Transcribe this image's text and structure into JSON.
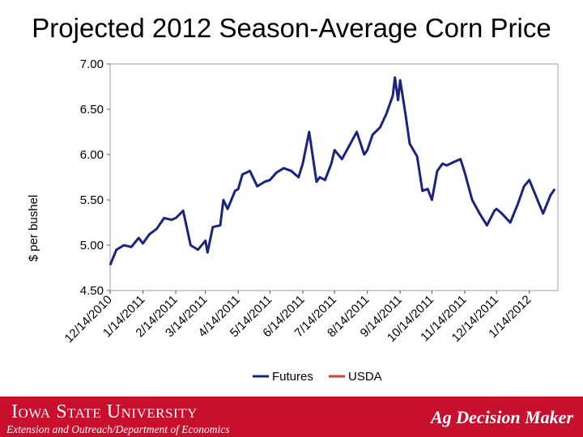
{
  "title": "Projected 2012 Season-Average Corn Price",
  "footer": {
    "university": "Iowa State University",
    "department": "Extension and Outreach/Department of Economics",
    "brand": "Ag Decision Maker"
  },
  "colors": {
    "futures": "#1a237e",
    "usda": "#e53935",
    "footer_bg": "#c8102e"
  },
  "chart_data": {
    "type": "line",
    "title": "",
    "xlabel": "",
    "ylabel": "$ per bushel",
    "ylim": [
      4.5,
      7.0
    ],
    "yticks": [
      "7.00",
      "6.50",
      "6.00",
      "5.50",
      "5.00",
      "4.50"
    ],
    "xtick_labels": [
      "12/14/2010",
      "1/14/2011",
      "2/14/2011",
      "3/14/2011",
      "4/14/2011",
      "5/14/2011",
      "6/14/2011",
      "7/14/2011",
      "8/14/2011",
      "9/14/2011",
      "10/14/2011",
      "11/14/2011",
      "12/14/2011",
      "1/14/2012"
    ],
    "grid": false,
    "legend": "bottom",
    "series": [
      {
        "name": "Futures",
        "x": [
          "2010-12-14",
          "2010-12-20",
          "2010-12-27",
          "2011-01-03",
          "2011-01-10",
          "2011-01-14",
          "2011-01-20",
          "2011-01-27",
          "2011-02-03",
          "2011-02-10",
          "2011-02-14",
          "2011-02-21",
          "2011-02-28",
          "2011-03-07",
          "2011-03-14",
          "2011-03-16",
          "2011-03-21",
          "2011-03-28",
          "2011-03-31",
          "2011-04-04",
          "2011-04-11",
          "2011-04-14",
          "2011-04-18",
          "2011-04-25",
          "2011-05-02",
          "2011-05-09",
          "2011-05-14",
          "2011-05-20",
          "2011-05-27",
          "2011-06-03",
          "2011-06-10",
          "2011-06-14",
          "2011-06-20",
          "2011-06-27",
          "2011-06-30",
          "2011-07-05",
          "2011-07-11",
          "2011-07-14",
          "2011-07-21",
          "2011-07-28",
          "2011-08-04",
          "2011-08-11",
          "2011-08-14",
          "2011-08-19",
          "2011-08-26",
          "2011-09-01",
          "2011-09-07",
          "2011-09-09",
          "2011-09-12",
          "2011-09-14",
          "2011-09-19",
          "2011-09-23",
          "2011-09-30",
          "2011-10-05",
          "2011-10-10",
          "2011-10-14",
          "2011-10-19",
          "2011-10-24",
          "2011-10-28",
          "2011-11-04",
          "2011-11-10",
          "2011-11-14",
          "2011-11-21",
          "2011-11-28",
          "2011-12-05",
          "2011-12-12",
          "2011-12-14",
          "2011-12-19",
          "2011-12-27",
          "2012-01-03",
          "2012-01-09",
          "2012-01-14",
          "2012-01-20",
          "2012-01-27",
          "2012-02-03",
          "2012-02-07"
        ],
        "values": [
          4.78,
          4.95,
          5.0,
          4.98,
          5.08,
          5.02,
          5.12,
          5.18,
          5.3,
          5.28,
          5.3,
          5.38,
          5.0,
          4.95,
          5.05,
          4.92,
          5.2,
          5.22,
          5.5,
          5.4,
          5.6,
          5.62,
          5.78,
          5.82,
          5.65,
          5.7,
          5.72,
          5.8,
          5.85,
          5.82,
          5.75,
          5.9,
          6.25,
          5.7,
          5.75,
          5.72,
          5.9,
          6.05,
          5.95,
          6.1,
          6.25,
          6.0,
          6.05,
          6.22,
          6.3,
          6.45,
          6.65,
          6.85,
          6.6,
          6.82,
          6.45,
          6.12,
          5.98,
          5.6,
          5.62,
          5.5,
          5.82,
          5.9,
          5.88,
          5.92,
          5.95,
          5.8,
          5.5,
          5.35,
          5.22,
          5.38,
          5.4,
          5.35,
          5.25,
          5.45,
          5.65,
          5.72,
          5.55,
          5.35,
          5.55,
          5.62
        ]
      },
      {
        "name": "USDA",
        "x": [],
        "values": []
      }
    ]
  }
}
